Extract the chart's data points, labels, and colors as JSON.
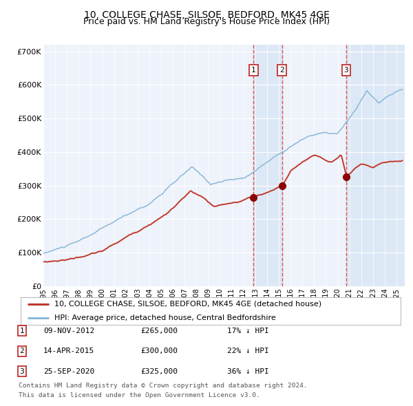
{
  "title": "10, COLLEGE CHASE, SILSOE, BEDFORD, MK45 4GE",
  "subtitle": "Price paid vs. HM Land Registry's House Price Index (HPI)",
  "ylim": [
    0,
    720000
  ],
  "yticks": [
    0,
    100000,
    200000,
    300000,
    400000,
    500000,
    600000,
    700000
  ],
  "ytick_labels": [
    "£0",
    "£100K",
    "£200K",
    "£300K",
    "£400K",
    "£500K",
    "£600K",
    "£700K"
  ],
  "hpi_color": "#8ab8d8",
  "price_color": "#c0392b",
  "sale_marker_color": "#8b0000",
  "vline_color": "#e05050",
  "shade_color": "#dce8f5",
  "background_color": "#eef2fa",
  "grid_color": "#ffffff",
  "xmin": 1995.0,
  "xmax": 2025.7,
  "sale1_date": 2012.86,
  "sale1_price": 265000,
  "sale2_date": 2015.29,
  "sale2_price": 300000,
  "sale3_date": 2020.73,
  "sale3_price": 325000,
  "legend_label_price": "10, COLLEGE CHASE, SILSOE, BEDFORD, MK45 4GE (detached house)",
  "legend_label_hpi": "HPI: Average price, detached house, Central Bedfordshire",
  "table_rows": [
    [
      "1",
      "09-NOV-2012",
      "£265,000",
      "17% ↓ HPI"
    ],
    [
      "2",
      "14-APR-2015",
      "£300,000",
      "22% ↓ HPI"
    ],
    [
      "3",
      "25-SEP-2020",
      "£325,000",
      "36% ↓ HPI"
    ]
  ],
  "footnote1": "Contains HM Land Registry data © Crown copyright and database right 2024.",
  "footnote2": "This data is licensed under the Open Government Licence v3.0.",
  "title_fontsize": 10,
  "subtitle_fontsize": 9,
  "tick_fontsize": 8,
  "anno_fontsize": 8.5
}
